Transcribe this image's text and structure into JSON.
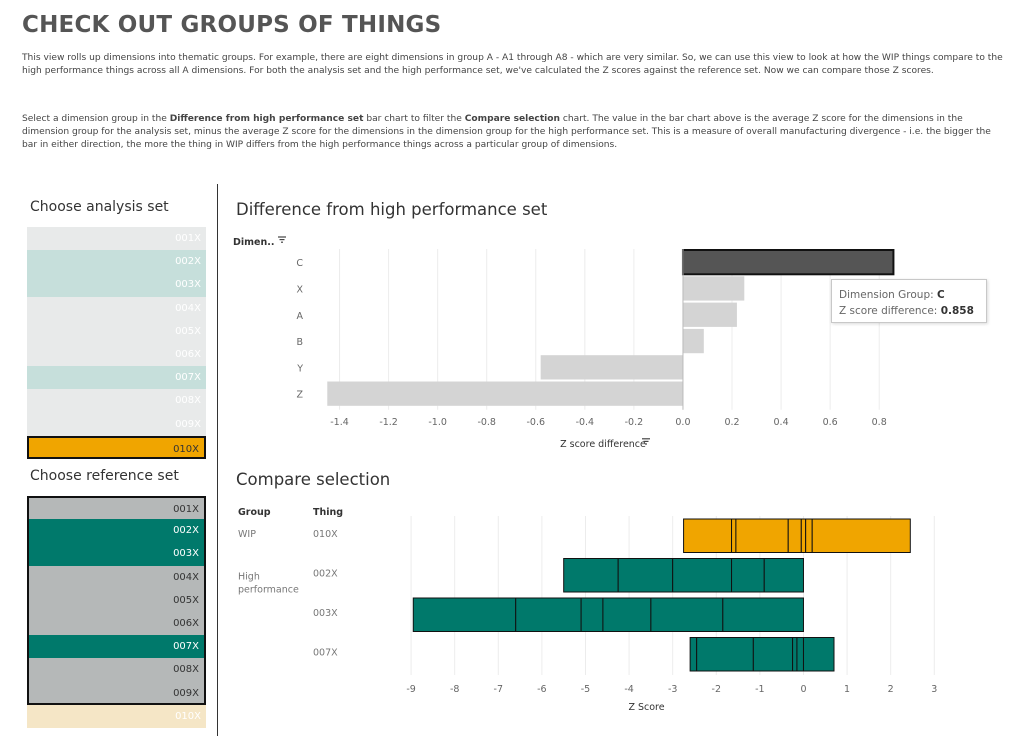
{
  "page": {
    "title": "CHECK OUT GROUPS OF THINGS",
    "intro": "This view rolls up dimensions into thematic groups. For example, there are eight dimensions in group A - A1 through A8 - which are very similar. So, we can use this view to look at how the WIP things compare to the high performance things across all A dimensions. For both the analysis set and the high performance set, we've calculated the Z scores against the reference set. Now we can compare those Z scores.",
    "instructions": {
      "part1": "Select a dimension group in the ",
      "bold1": "Difference from high performance set",
      "part2": " bar chart to filter the ",
      "bold2": "Compare selection",
      "part3": " chart. The value in the bar chart above is the average Z score for the dimensions in the dimension group for the analysis set, minus the average Z score for the dimensions in the dimension group for the high performance set. This is a measure of overall manufacturing divergence - i.e. the bigger the bar in either direction, the more the thing in WIP differs from the high performance things across a particular group of dimensions."
    }
  },
  "analysis_set": {
    "title": "Choose analysis set",
    "items": [
      {
        "label": "001X",
        "bg": "#e8eaea",
        "color": "#ffffff"
      },
      {
        "label": "002X",
        "bg": "#c6dfdb",
        "color": "#ffffff"
      },
      {
        "label": "003X",
        "bg": "#c6dfdb",
        "color": "#ffffff"
      },
      {
        "label": "004X",
        "bg": "#e8eaea",
        "color": "#ffffff"
      },
      {
        "label": "005X",
        "bg": "#e8eaea",
        "color": "#ffffff"
      },
      {
        "label": "006X",
        "bg": "#e8eaea",
        "color": "#ffffff"
      },
      {
        "label": "007X",
        "bg": "#c6dfdb",
        "color": "#ffffff"
      },
      {
        "label": "008X",
        "bg": "#e8eaea",
        "color": "#ffffff"
      },
      {
        "label": "009X",
        "bg": "#e8eaea",
        "color": "#ffffff"
      },
      {
        "label": "010X",
        "bg": "#f0a500",
        "color": "#333333",
        "selected": true
      }
    ]
  },
  "reference_set": {
    "title": "Choose reference set",
    "items": [
      {
        "label": "001X",
        "bg": "#b5b8b8",
        "color": "#333333"
      },
      {
        "label": "002X",
        "bg": "#00796b",
        "color": "#ffffff"
      },
      {
        "label": "003X",
        "bg": "#00796b",
        "color": "#ffffff"
      },
      {
        "label": "004X",
        "bg": "#b5b8b8",
        "color": "#333333"
      },
      {
        "label": "005X",
        "bg": "#b5b8b8",
        "color": "#333333"
      },
      {
        "label": "006X",
        "bg": "#b5b8b8",
        "color": "#333333"
      },
      {
        "label": "007X",
        "bg": "#00796b",
        "color": "#ffffff"
      },
      {
        "label": "008X",
        "bg": "#b5b8b8",
        "color": "#333333"
      },
      {
        "label": "009X",
        "bg": "#b5b8b8",
        "color": "#333333"
      },
      {
        "label": "010X",
        "bg": "#f5e6c6",
        "color": "#ffffff"
      }
    ]
  },
  "tooltip": {
    "label1": "Dimension Group:",
    "value1": "C",
    "label2": "Z score difference:",
    "value2": "0.858"
  },
  "colors": {
    "selected_bar": "#555555",
    "unselected_bar": "#d4d4d4",
    "wip": "#f0a500",
    "high_performance": "#00796b",
    "grid": "#ececec"
  },
  "chart_data": [
    {
      "type": "bar",
      "orientation": "horizontal",
      "title": "Difference from high performance set",
      "row_header": "Dimen..",
      "xlabel": "Z score difference",
      "categories": [
        "C",
        "X",
        "A",
        "B",
        "Y",
        "Z"
      ],
      "values": [
        0.858,
        0.25,
        0.22,
        0.085,
        -0.58,
        -1.45
      ],
      "selected": "C",
      "xlim": [
        -1.5,
        0.95
      ],
      "xticks": [
        -1.4,
        -1.2,
        -1.0,
        -0.8,
        -0.6,
        -0.4,
        -0.2,
        0.0,
        0.2,
        0.4,
        0.6,
        0.8
      ],
      "grid": true
    },
    {
      "type": "bar",
      "orientation": "horizontal",
      "stacked": true,
      "title": "Compare selection",
      "col_headers": [
        "Group",
        "Thing"
      ],
      "xlabel": "Z Score",
      "xlim": [
        -9.3,
        3.2
      ],
      "xticks": [
        -9,
        -8,
        -7,
        -6,
        -5,
        -4,
        -3,
        -2,
        -1,
        0,
        1,
        2,
        3
      ],
      "grid": true,
      "rows": [
        {
          "group": "WIP",
          "thing": "010X",
          "color": "wip",
          "boundaries": [
            -2.75,
            -1.65,
            -1.55,
            -0.35,
            -0.05,
            0.05,
            0.2,
            2.45
          ]
        },
        {
          "group": "High performance",
          "thing": "002X",
          "color": "high_performance",
          "boundaries": [
            -5.5,
            -4.25,
            -3.0,
            -1.65,
            -0.9,
            0.0
          ]
        },
        {
          "group": "",
          "thing": "003X",
          "color": "high_performance",
          "boundaries": [
            -8.95,
            -6.6,
            -5.1,
            -4.6,
            -3.5,
            -1.85,
            0.0
          ]
        },
        {
          "group": "",
          "thing": "007X",
          "color": "high_performance",
          "boundaries": [
            -2.6,
            -2.45,
            -1.15,
            -0.25,
            -0.15,
            0.0,
            0.7
          ]
        }
      ]
    }
  ]
}
